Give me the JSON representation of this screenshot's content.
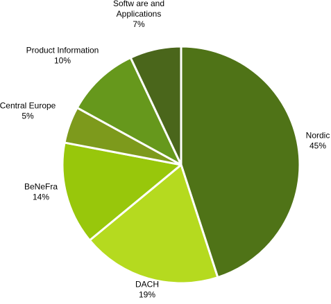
{
  "chart_data": {
    "type": "pie",
    "title": "",
    "legend": "none",
    "slices": [
      {
        "label": [
          "Nordic"
        ],
        "percent_label": "45%",
        "value": 45,
        "color": "#4f7317"
      },
      {
        "label": [
          "DACH"
        ],
        "percent_label": "19%",
        "value": 19,
        "color": "#b5da1f"
      },
      {
        "label": [
          "BeNeFra"
        ],
        "percent_label": "14%",
        "value": 14,
        "color": "#98c70b"
      },
      {
        "label": [
          "Central Europe"
        ],
        "percent_label": "5%",
        "value": 5,
        "color": "#7d9a1c"
      },
      {
        "label": [
          "Product Information"
        ],
        "percent_label": "10%",
        "value": 10,
        "color": "#66981c"
      },
      {
        "label": [
          "Softw are and",
          "Applications"
        ],
        "percent_label": "7%",
        "value": 7,
        "color": "#4a661b"
      }
    ]
  }
}
